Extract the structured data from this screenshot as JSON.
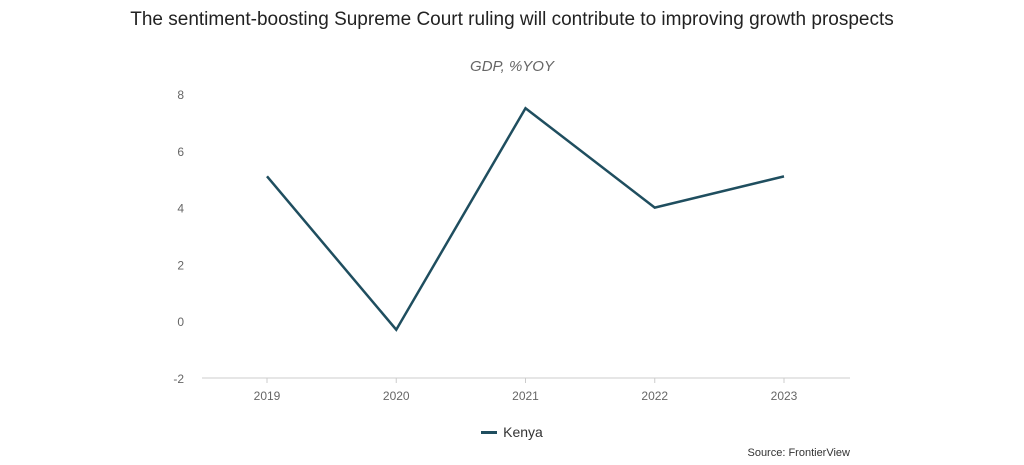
{
  "chart_data": {
    "type": "line",
    "title": "The sentiment-boosting Supreme Court ruling will contribute to improving growth prospects",
    "subtitle": "GDP, %YOY",
    "categories": [
      "2019",
      "2020",
      "2021",
      "2022",
      "2023"
    ],
    "series": [
      {
        "name": "Kenya",
        "values": [
          5.1,
          -0.3,
          7.5,
          4.0,
          5.1
        ],
        "color": "#1f4e5f"
      }
    ],
    "ylim": [
      -2,
      8
    ],
    "yticks": [
      "-2",
      "0",
      "2",
      "4",
      "6",
      "8"
    ],
    "grid": false,
    "legend": "bottom-center",
    "source": "Source: FrontierView"
  }
}
